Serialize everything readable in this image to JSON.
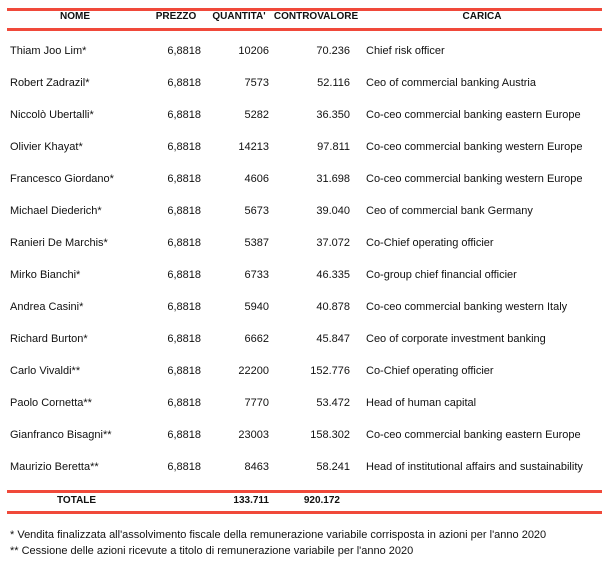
{
  "headers": {
    "nome": "NOME",
    "prezzo": "PREZZO",
    "quantita": "QUANTITA'",
    "controvalore": "CONTROVALORE",
    "carica": "CARICA"
  },
  "rows": [
    {
      "nome": "Thiam Joo Lim*",
      "prezzo": "6,8818",
      "quantita": "10206",
      "controvalore": "70.236",
      "carica": "Chief risk officer"
    },
    {
      "nome": "Robert Zadrazil*",
      "prezzo": "6,8818",
      "quantita": "7573",
      "controvalore": "52.116",
      "carica": "Ceo of commercial banking Austria"
    },
    {
      "nome": "Niccolò Ubertalli*",
      "prezzo": "6,8818",
      "quantita": "5282",
      "controvalore": "36.350",
      "carica": "Co-ceo commercial banking eastern Europe"
    },
    {
      "nome": "Olivier Khayat*",
      "prezzo": "6,8818",
      "quantita": "14213",
      "controvalore": "97.811",
      "carica": "Co-ceo commercial banking western Europe"
    },
    {
      "nome": "Francesco Giordano*",
      "prezzo": "6,8818",
      "quantita": "4606",
      "controvalore": "31.698",
      "carica": "Co-ceo commercial banking western Europe"
    },
    {
      "nome": "Michael Diederich*",
      "prezzo": "6,8818",
      "quantita": "5673",
      "controvalore": "39.040",
      "carica": "Ceo of commercial bank Germany"
    },
    {
      "nome": "Ranieri De Marchis*",
      "prezzo": "6,8818",
      "quantita": "5387",
      "controvalore": "37.072",
      "carica": "Co-Chief operating officier"
    },
    {
      "nome": "Mirko Bianchi*",
      "prezzo": "6,8818",
      "quantita": "6733",
      "controvalore": "46.335",
      "carica": "Co-group chief financial officier"
    },
    {
      "nome": "Andrea Casini*",
      "prezzo": "6,8818",
      "quantita": "5940",
      "controvalore": "40.878",
      "carica": "Co-ceo commercial banking western Italy"
    },
    {
      "nome": "Richard Burton*",
      "prezzo": "6,8818",
      "quantita": "6662",
      "controvalore": "45.847",
      "carica": "Ceo of corporate investment banking"
    },
    {
      "nome": "Carlo Vivaldi**",
      "prezzo": "6,8818",
      "quantita": "22200",
      "controvalore": "152.776",
      "carica": "Co-Chief operating officier"
    },
    {
      "nome": "Paolo Cornetta**",
      "prezzo": "6,8818",
      "quantita": "7770",
      "controvalore": "53.472",
      "carica": "Head of human capital"
    },
    {
      "nome": "Gianfranco Bisagni**",
      "prezzo": "6,8818",
      "quantita": "23003",
      "controvalore": "158.302",
      "carica": "Co-ceo commercial banking eastern Europe"
    },
    {
      "nome": "Maurizio Beretta**",
      "prezzo": "6,8818",
      "quantita": "8463",
      "controvalore": "58.241",
      "carica": "Head of institutional affairs and sustainability"
    }
  ],
  "totale": {
    "label": "TOTALE",
    "quantita": "133.711",
    "controvalore": "920.172"
  },
  "footnotes": [
    "* Vendita finalizzata all'assolvimento fiscale della remunerazione variabile corrisposta in azioni per l'anno 2020",
    "** Cessione delle azioni ricevute a titolo di remunerazione variabile per l'anno 2020"
  ],
  "colors": {
    "rule": "#f0493a"
  }
}
